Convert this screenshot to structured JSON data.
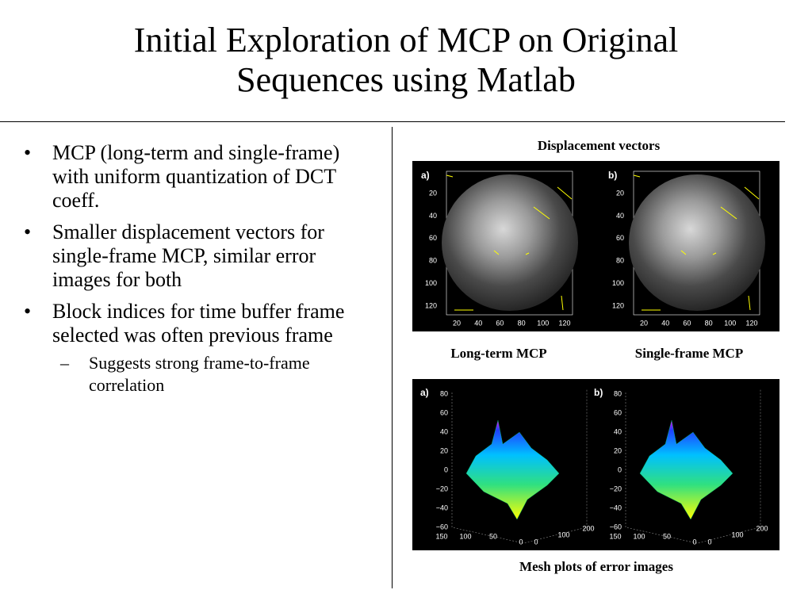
{
  "title_lines": [
    "Initial Exploration of MCP on Original",
    "Sequences using Matlab"
  ],
  "bullets": [
    {
      "text": "MCP (long-term and single-frame) with uniform quantization of DCT coeff."
    },
    {
      "text": "Smaller displacement vectors for single-frame MCP, similar error images for both"
    },
    {
      "text": "Block indices for time buffer frame selected was often previous frame",
      "sub": [
        "Suggests strong frame-to-frame correlation"
      ]
    }
  ],
  "figure_top": {
    "caption": "Displacement  vectors",
    "panel_labels": [
      "a)",
      "b)"
    ],
    "yticks": [
      "20",
      "40",
      "60",
      "80",
      "100",
      "120"
    ],
    "xticks": [
      "20",
      "40",
      "60",
      "80",
      "100",
      "120"
    ],
    "sub_captions": [
      "Long-term MCP",
      "Single-frame MCP"
    ]
  },
  "figure_bottom": {
    "panel_labels": [
      "a)",
      "b)"
    ],
    "zticks": [
      "80",
      "60",
      "40",
      "20",
      "0",
      "−20",
      "−40",
      "−60"
    ],
    "left_axis": [
      "150",
      "100",
      "50",
      "0"
    ],
    "right_axis": [
      "0",
      "100",
      "200"
    ],
    "caption": "Mesh plots of error images"
  }
}
